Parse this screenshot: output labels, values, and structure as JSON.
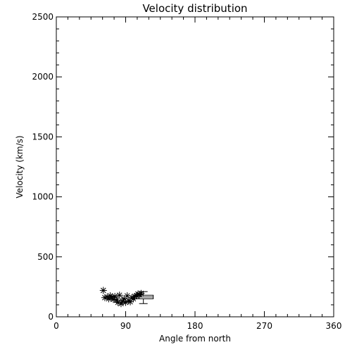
{
  "chart_data": {
    "type": "scatter",
    "title": "Velocity distribution",
    "xlabel": "Angle from north",
    "ylabel": "Velocity (km/s)",
    "xlim": [
      0,
      360
    ],
    "ylim": [
      0,
      2500
    ],
    "x_ticks": [
      0,
      90,
      180,
      270,
      360
    ],
    "x_tick_labels": [
      "0",
      "90",
      "180",
      "270",
      "360"
    ],
    "y_ticks": [
      0,
      500,
      1000,
      1500,
      2000,
      2500
    ],
    "y_tick_labels": [
      "0",
      "500",
      "1000",
      "1500",
      "2000",
      "2500"
    ],
    "grid": false,
    "marker": "asterisk",
    "points": [
      {
        "x": 61,
        "y": 220
      },
      {
        "x": 63,
        "y": 160
      },
      {
        "x": 66,
        "y": 165
      },
      {
        "x": 68,
        "y": 150
      },
      {
        "x": 70,
        "y": 175
      },
      {
        "x": 72,
        "y": 160
      },
      {
        "x": 74,
        "y": 145
      },
      {
        "x": 76,
        "y": 170
      },
      {
        "x": 78,
        "y": 140
      },
      {
        "x": 80,
        "y": 120
      },
      {
        "x": 82,
        "y": 180
      },
      {
        "x": 84,
        "y": 110
      },
      {
        "x": 86,
        "y": 130
      },
      {
        "x": 88,
        "y": 150
      },
      {
        "x": 90,
        "y": 120
      },
      {
        "x": 92,
        "y": 175
      },
      {
        "x": 94,
        "y": 135
      },
      {
        "x": 96,
        "y": 125
      },
      {
        "x": 98,
        "y": 160
      },
      {
        "x": 100,
        "y": 150
      },
      {
        "x": 102,
        "y": 170
      },
      {
        "x": 104,
        "y": 175
      },
      {
        "x": 106,
        "y": 190
      },
      {
        "x": 108,
        "y": 185
      },
      {
        "x": 110,
        "y": 195
      }
    ],
    "box_summary": {
      "x": 113,
      "whisker_low": 110,
      "q1": 150,
      "median": 165,
      "q3": 180,
      "whisker_high": 210
    }
  }
}
